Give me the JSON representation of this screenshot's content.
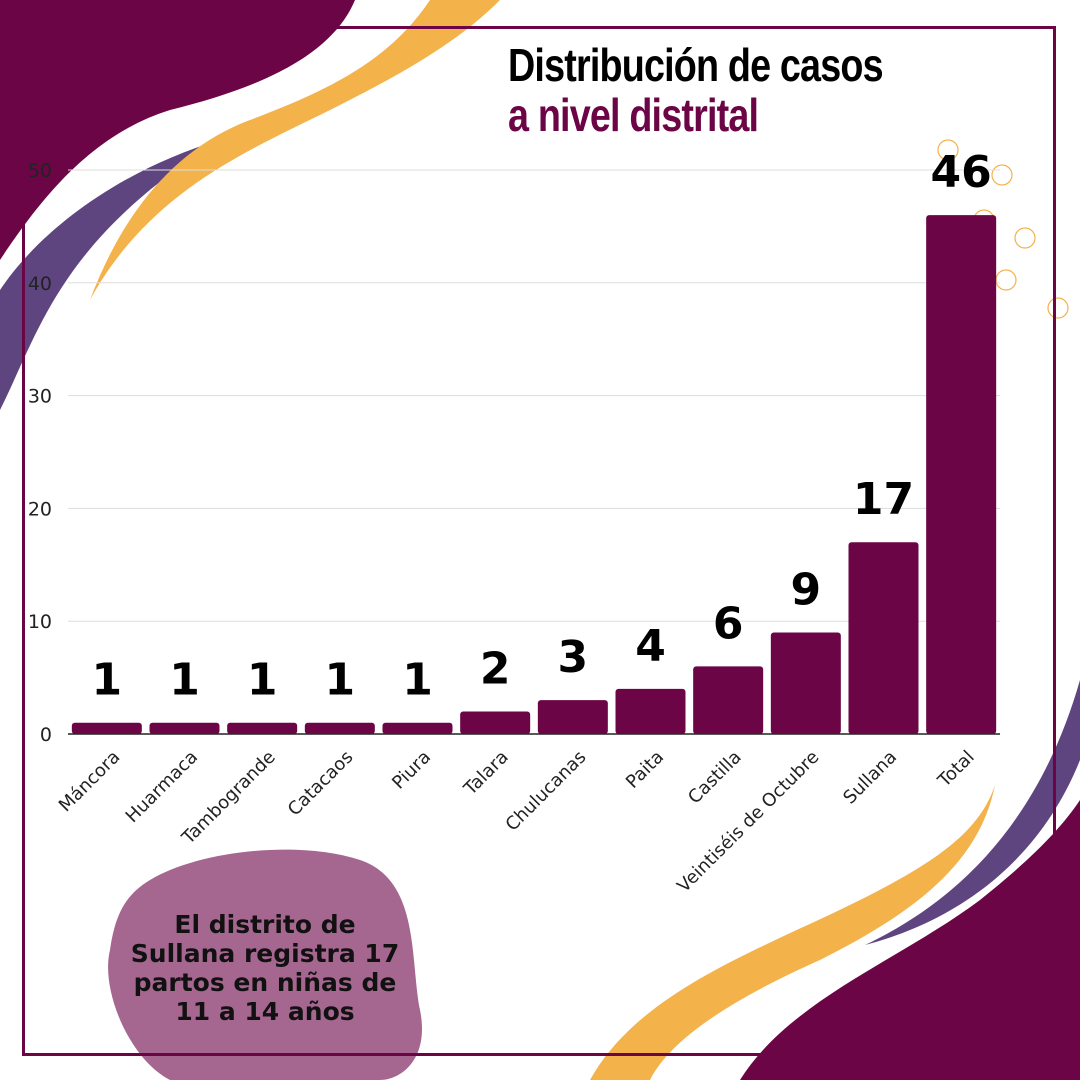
{
  "title": {
    "line1": "Distribución de casos",
    "line2": "a nivel distrital"
  },
  "note": "El distrito de Sullana registra 17 partos en niñas de 11 a 14 años",
  "colors": {
    "bar": "#6b0545",
    "accent_orange": "#f4b24a",
    "accent_purple": "#5f4580",
    "blob": "#a5668f"
  },
  "chart_data": {
    "type": "bar",
    "title": "Distribución de casos a nivel distrital",
    "categories": [
      "Máncora",
      "Huarmaca",
      "Tambogrande",
      "Catacaos",
      "Piura",
      "Talara",
      "Chulucanas",
      "Paita",
      "Castilla",
      "Veintiséis de Octubre",
      "Sullana",
      "Total"
    ],
    "values": [
      1,
      1,
      1,
      1,
      1,
      2,
      3,
      4,
      6,
      9,
      17,
      46
    ],
    "yticks": [
      0,
      10,
      20,
      30,
      40,
      50
    ],
    "ylim": [
      0,
      50
    ],
    "xlabel": "",
    "ylabel": "",
    "grid": true
  }
}
